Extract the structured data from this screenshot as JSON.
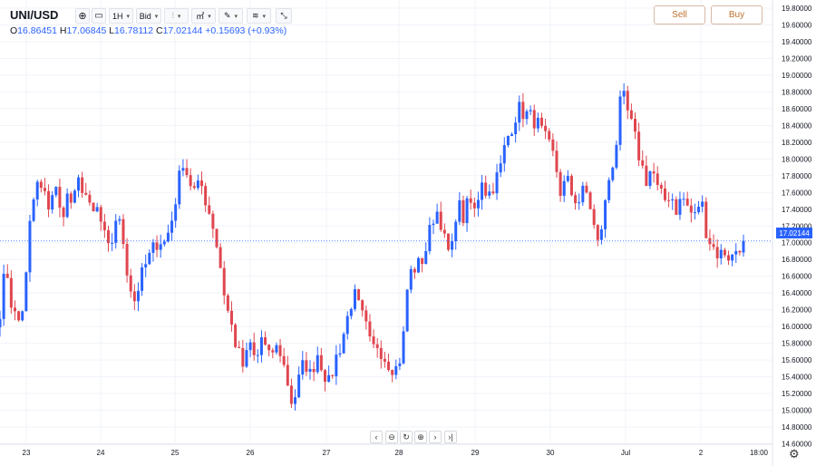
{
  "symbol": "UNI/USD",
  "toolbar": {
    "timeframe": "1H",
    "price_type": "Bid"
  },
  "ohlc": {
    "o_label": "O",
    "o": "16.86451",
    "h_label": "H",
    "h": "17.06845",
    "l_label": "L",
    "l": "16.78112",
    "c_label": "C",
    "c": "17.02144",
    "change": "+0.15693 (+0.93%)"
  },
  "actions": {
    "sell": "Sell",
    "buy": "Buy"
  },
  "last_price_tag": "17.02144",
  "colors": {
    "up": "#2962ff",
    "down": "#e0464f",
    "grid": "#f0f3fa",
    "last_line": "#2962ff"
  },
  "icons": {
    "add": "plus-circle-icon",
    "screen": "monitor-icon",
    "chart_type": "candles-icon",
    "indicators": "indicators-icon",
    "drawing": "pencil-icon",
    "layers": "layers-icon",
    "fullscreen": "collapse-icon",
    "settings": "gear-icon"
  },
  "nav_buttons": [
    "‹",
    "⊖",
    "↻",
    "⊕",
    "›",
    "›|"
  ],
  "chart_data": {
    "type": "candlestick",
    "y_ticks": [
      "19.80000",
      "19.60000",
      "19.40000",
      "19.20000",
      "19.00000",
      "18.80000",
      "18.60000",
      "18.40000",
      "18.20000",
      "18.00000",
      "17.80000",
      "17.60000",
      "17.40000",
      "17.20000",
      "17.00000",
      "16.80000",
      "16.60000",
      "16.40000",
      "16.20000",
      "16.00000",
      "15.80000",
      "15.60000",
      "15.40000",
      "15.20000",
      "15.00000",
      "14.80000",
      "14.60000"
    ],
    "x_ticks": [
      "23",
      "24",
      "25",
      "26",
      "27",
      "28",
      "29",
      "30",
      "Jul",
      "2",
      "18:00"
    ],
    "ylim": [
      14.55,
      19.85
    ],
    "grid": true,
    "last_price": 17.02144,
    "close_path": [
      16.2,
      16.75,
      16.2,
      16.05,
      16.3,
      17.3,
      17.7,
      17.6,
      17.45,
      17.7,
      17.3,
      17.55,
      17.45,
      17.75,
      17.6,
      17.3,
      17.4,
      17.1,
      16.85,
      17.3,
      17.15,
      16.6,
      16.3,
      16.55,
      16.75,
      16.9,
      17.05,
      17.0,
      17.2,
      17.6,
      18.0,
      17.75,
      17.6,
      17.7,
      17.45,
      17.2,
      16.8,
      16.3,
      16.0,
      15.7,
      15.5,
      15.8,
      15.55,
      15.9,
      15.6,
      15.75,
      15.7,
      15.4,
      15.05,
      15.35,
      15.6,
      15.4,
      15.7,
      15.5,
      15.3,
      15.6,
      15.8,
      16.1,
      16.4,
      16.2,
      16.0,
      15.7,
      15.8,
      15.65,
      15.55,
      15.5,
      15.7,
      16.6,
      16.7,
      16.75,
      16.95,
      17.3,
      17.4,
      17.0,
      16.8,
      17.5,
      17.3,
      17.5,
      17.35,
      17.8,
      17.55,
      17.7,
      17.85,
      18.2,
      18.4,
      18.6,
      18.55,
      18.5,
      18.45,
      18.3,
      18.15,
      18.0,
      17.6,
      17.75,
      17.55,
      17.5,
      17.65,
      17.4,
      16.95,
      17.3,
      17.8,
      18.1,
      18.8,
      18.55,
      18.3,
      18.0,
      17.75,
      17.9,
      17.6,
      17.5,
      17.6,
      17.4,
      17.55,
      17.4,
      17.3,
      17.55,
      17.1,
      16.95,
      16.85,
      16.9,
      16.8,
      16.95,
      17.02
    ],
    "candle_count": 200
  }
}
